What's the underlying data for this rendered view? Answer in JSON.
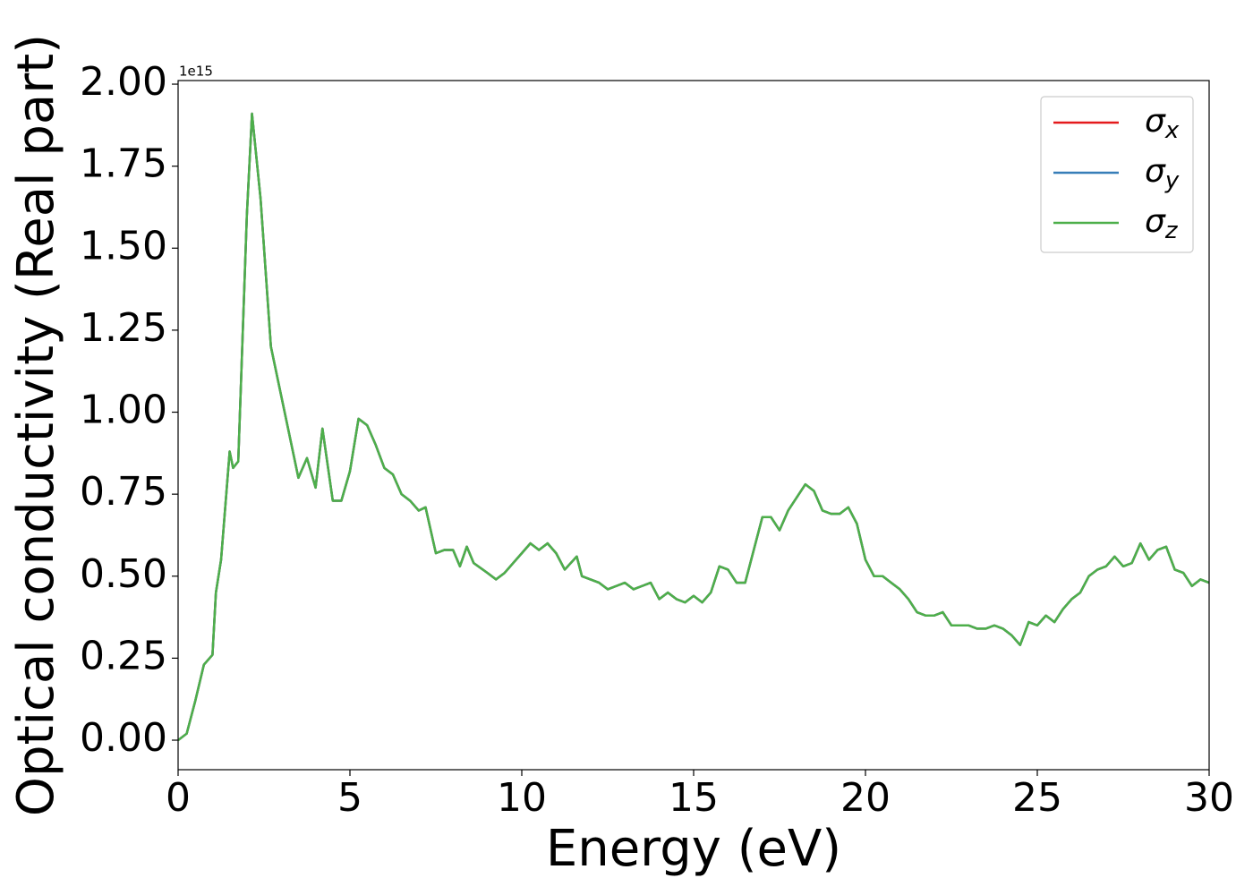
{
  "chart_data": {
    "type": "line",
    "xlabel": "Energy (eV)",
    "ylabel": "Optical conductivity (Real part)",
    "offset_label": "1e15",
    "x": [
      0,
      0.25,
      0.5,
      0.75,
      1.0,
      1.1,
      1.25,
      1.5,
      1.6,
      1.75,
      2.0,
      2.15,
      2.4,
      2.7,
      3.0,
      3.2,
      3.5,
      3.75,
      4.0,
      4.2,
      4.5,
      4.75,
      5.0,
      5.25,
      5.5,
      5.75,
      6.0,
      6.25,
      6.5,
      6.75,
      7.0,
      7.2,
      7.5,
      7.75,
      8.0,
      8.2,
      8.4,
      8.6,
      9.0,
      9.25,
      9.5,
      9.75,
      10.0,
      10.25,
      10.5,
      10.75,
      11.0,
      11.25,
      11.6,
      11.75,
      12.0,
      12.25,
      12.5,
      12.75,
      13.0,
      13.25,
      13.5,
      13.75,
      14.0,
      14.25,
      14.5,
      14.75,
      15.0,
      15.25,
      15.5,
      15.75,
      16.0,
      16.25,
      16.5,
      16.75,
      17.0,
      17.25,
      17.5,
      17.75,
      18.0,
      18.25,
      18.5,
      18.75,
      19.0,
      19.25,
      19.5,
      19.75,
      20.0,
      20.25,
      20.5,
      20.75,
      21.0,
      21.25,
      21.5,
      21.75,
      22.0,
      22.25,
      22.5,
      22.75,
      23.0,
      23.25,
      23.5,
      23.75,
      24.0,
      24.25,
      24.5,
      24.75,
      25.0,
      25.25,
      25.5,
      25.75,
      26.0,
      26.25,
      26.5,
      26.75,
      27.0,
      27.25,
      27.5,
      27.75,
      28.0,
      28.25,
      28.5,
      28.75,
      29.0,
      29.25,
      29.5,
      29.75,
      30.0
    ],
    "series": [
      {
        "name": "σx",
        "color": "#e41a1c",
        "values": [
          0.0,
          0.02,
          0.12,
          0.23,
          0.26,
          0.45,
          0.55,
          0.88,
          0.83,
          0.85,
          1.6,
          1.91,
          1.65,
          1.2,
          1.05,
          0.95,
          0.8,
          0.86,
          0.77,
          0.95,
          0.73,
          0.73,
          0.82,
          0.98,
          0.96,
          0.9,
          0.83,
          0.81,
          0.75,
          0.73,
          0.7,
          0.71,
          0.57,
          0.58,
          0.58,
          0.53,
          0.59,
          0.54,
          0.51,
          0.49,
          0.51,
          0.54,
          0.57,
          0.6,
          0.58,
          0.6,
          0.57,
          0.52,
          0.56,
          0.5,
          0.49,
          0.48,
          0.46,
          0.47,
          0.48,
          0.46,
          0.47,
          0.48,
          0.43,
          0.45,
          0.43,
          0.42,
          0.44,
          0.42,
          0.45,
          0.53,
          0.52,
          0.48,
          0.48,
          0.58,
          0.68,
          0.68,
          0.64,
          0.7,
          0.74,
          0.78,
          0.76,
          0.7,
          0.69,
          0.69,
          0.71,
          0.66,
          0.55,
          0.5,
          0.5,
          0.48,
          0.46,
          0.43,
          0.39,
          0.38,
          0.38,
          0.39,
          0.35,
          0.35,
          0.35,
          0.34,
          0.34,
          0.35,
          0.34,
          0.32,
          0.29,
          0.36,
          0.35,
          0.38,
          0.36,
          0.4,
          0.43,
          0.45,
          0.5,
          0.52,
          0.53,
          0.56,
          0.53,
          0.54,
          0.6,
          0.55,
          0.58,
          0.59,
          0.52,
          0.51,
          0.47,
          0.49,
          0.48
        ]
      },
      {
        "name": "σy",
        "color": "#377eb8",
        "values": [
          0.0,
          0.02,
          0.12,
          0.23,
          0.26,
          0.45,
          0.55,
          0.88,
          0.83,
          0.85,
          1.6,
          1.91,
          1.65,
          1.2,
          1.05,
          0.95,
          0.8,
          0.86,
          0.77,
          0.95,
          0.73,
          0.73,
          0.82,
          0.98,
          0.96,
          0.9,
          0.83,
          0.81,
          0.75,
          0.73,
          0.7,
          0.71,
          0.57,
          0.58,
          0.58,
          0.53,
          0.59,
          0.54,
          0.51,
          0.49,
          0.51,
          0.54,
          0.57,
          0.6,
          0.58,
          0.6,
          0.57,
          0.52,
          0.56,
          0.5,
          0.49,
          0.48,
          0.46,
          0.47,
          0.48,
          0.46,
          0.47,
          0.48,
          0.43,
          0.45,
          0.43,
          0.42,
          0.44,
          0.42,
          0.45,
          0.53,
          0.52,
          0.48,
          0.48,
          0.58,
          0.68,
          0.68,
          0.64,
          0.7,
          0.74,
          0.78,
          0.76,
          0.7,
          0.69,
          0.69,
          0.71,
          0.66,
          0.55,
          0.5,
          0.5,
          0.48,
          0.46,
          0.43,
          0.39,
          0.38,
          0.38,
          0.39,
          0.35,
          0.35,
          0.35,
          0.34,
          0.34,
          0.35,
          0.34,
          0.32,
          0.29,
          0.36,
          0.35,
          0.38,
          0.36,
          0.4,
          0.43,
          0.45,
          0.5,
          0.52,
          0.53,
          0.56,
          0.53,
          0.54,
          0.6,
          0.55,
          0.58,
          0.59,
          0.52,
          0.51,
          0.47,
          0.49,
          0.48
        ]
      },
      {
        "name": "σz",
        "color": "#4daf4a",
        "values": [
          0.0,
          0.02,
          0.12,
          0.23,
          0.26,
          0.45,
          0.55,
          0.88,
          0.83,
          0.85,
          1.6,
          1.91,
          1.65,
          1.2,
          1.05,
          0.95,
          0.8,
          0.86,
          0.77,
          0.95,
          0.73,
          0.73,
          0.82,
          0.98,
          0.96,
          0.9,
          0.83,
          0.81,
          0.75,
          0.73,
          0.7,
          0.71,
          0.57,
          0.58,
          0.58,
          0.53,
          0.59,
          0.54,
          0.51,
          0.49,
          0.51,
          0.54,
          0.57,
          0.6,
          0.58,
          0.6,
          0.57,
          0.52,
          0.56,
          0.5,
          0.49,
          0.48,
          0.46,
          0.47,
          0.48,
          0.46,
          0.47,
          0.48,
          0.43,
          0.45,
          0.43,
          0.42,
          0.44,
          0.42,
          0.45,
          0.53,
          0.52,
          0.48,
          0.48,
          0.58,
          0.68,
          0.68,
          0.64,
          0.7,
          0.74,
          0.78,
          0.76,
          0.7,
          0.69,
          0.69,
          0.71,
          0.66,
          0.55,
          0.5,
          0.5,
          0.48,
          0.46,
          0.43,
          0.39,
          0.38,
          0.38,
          0.39,
          0.35,
          0.35,
          0.35,
          0.34,
          0.34,
          0.35,
          0.34,
          0.32,
          0.29,
          0.36,
          0.35,
          0.38,
          0.36,
          0.4,
          0.43,
          0.45,
          0.5,
          0.52,
          0.53,
          0.56,
          0.53,
          0.54,
          0.6,
          0.55,
          0.58,
          0.59,
          0.52,
          0.51,
          0.47,
          0.49,
          0.48
        ]
      }
    ],
    "xlim": [
      0,
      30
    ],
    "xticks": [
      0,
      5,
      10,
      15,
      20,
      25,
      30
    ],
    "ylim": [
      -0.09,
      2.011
    ],
    "yticks": [
      {
        "value": 0,
        "label": "0.00"
      },
      0.25,
      {
        "value": 0.5,
        "label": "0.50"
      },
      0.75,
      {
        "value": 1,
        "label": "1.00"
      },
      1.25,
      {
        "value": 1.5,
        "label": "1.50"
      },
      1.75,
      {
        "value": 2,
        "label": "2.00"
      }
    ],
    "grid": false,
    "legend": "upper right"
  }
}
